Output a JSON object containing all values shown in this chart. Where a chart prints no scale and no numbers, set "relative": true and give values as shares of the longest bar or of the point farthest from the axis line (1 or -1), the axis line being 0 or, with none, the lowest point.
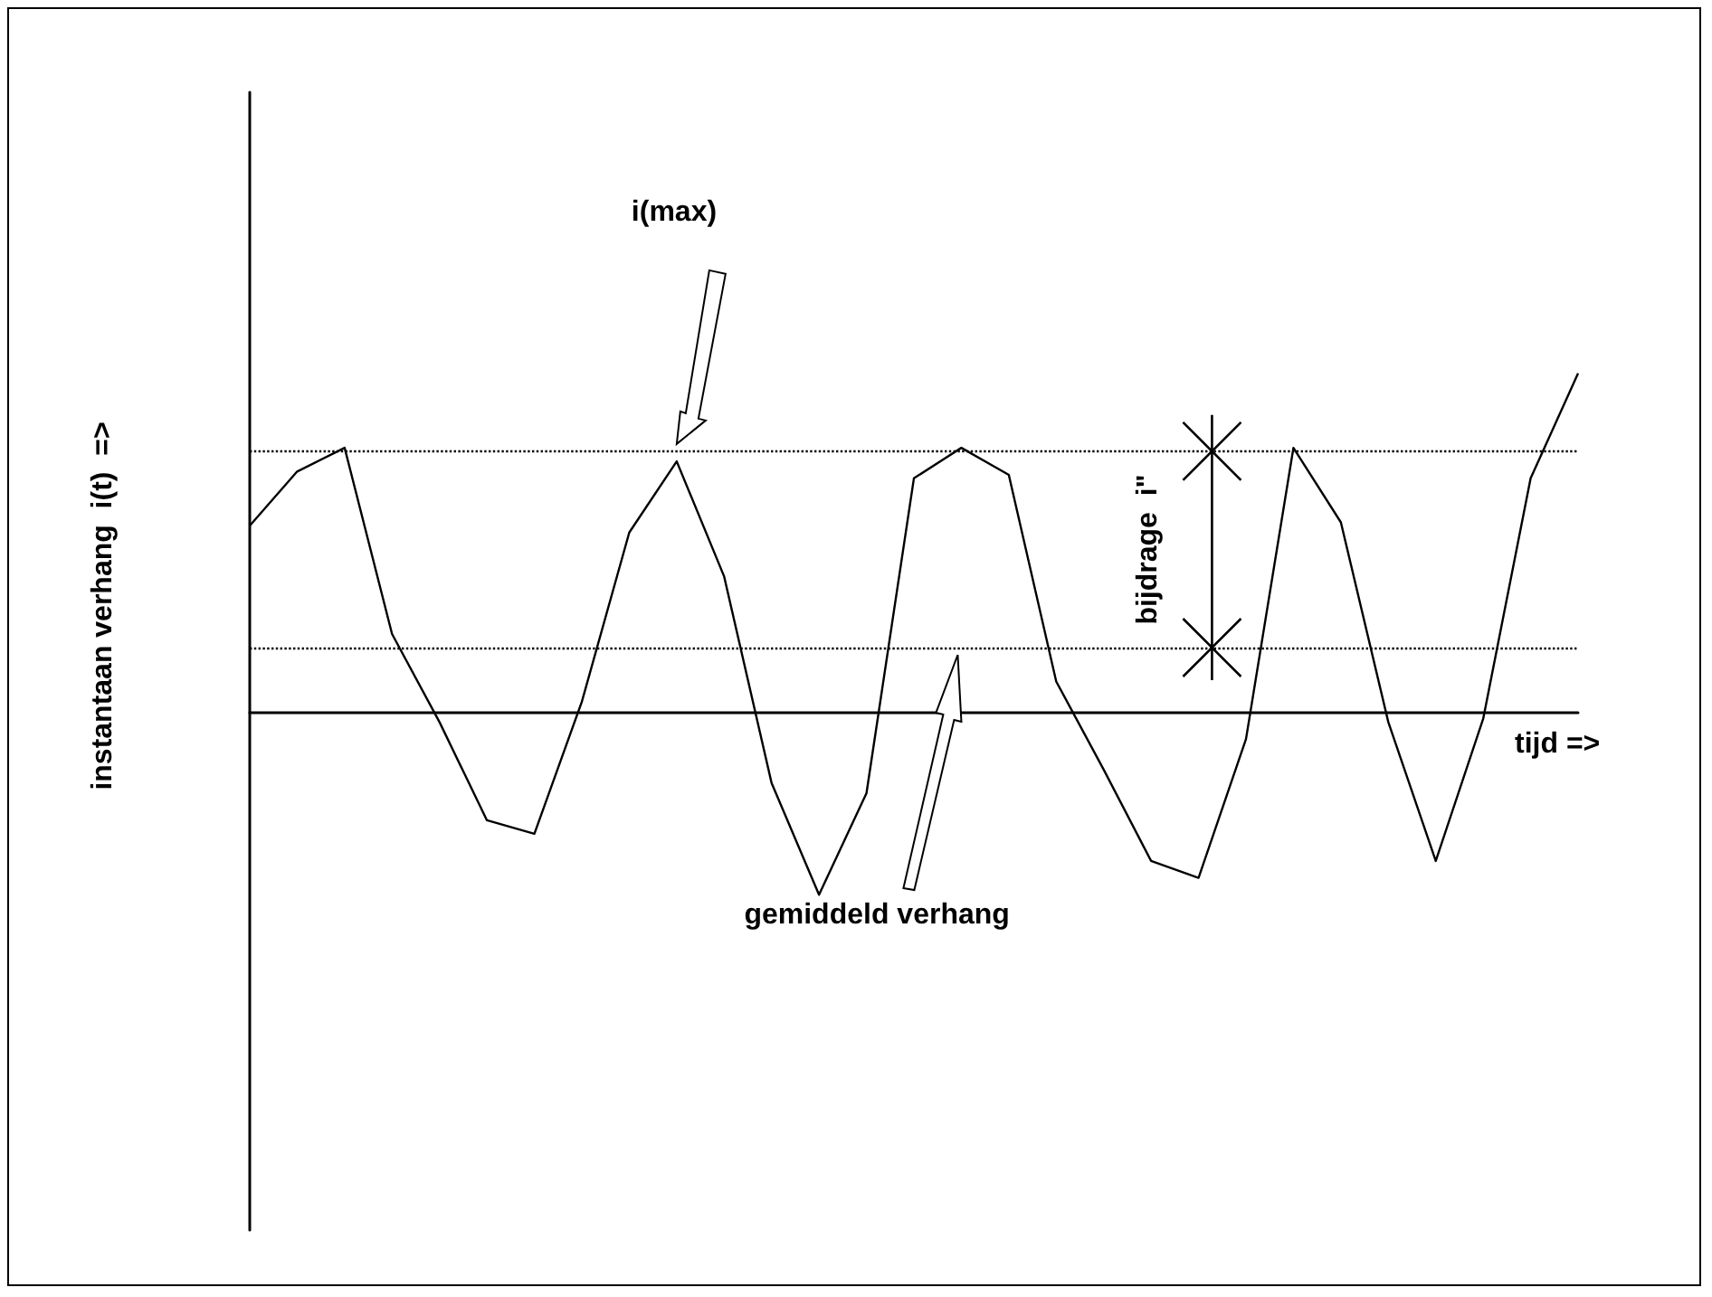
{
  "chart_data": {
    "type": "line",
    "relative": true,
    "xlabel": "tijd =>",
    "ylabel": "instantaan verhang  i(t)  =>",
    "categories": [
      null,
      null,
      null,
      null,
      null,
      null,
      null,
      null,
      null,
      null,
      null,
      null,
      null,
      null,
      null,
      null,
      null,
      null,
      null,
      null,
      null,
      null,
      null,
      null,
      null,
      null,
      null,
      null,
      null
    ],
    "values": [
      0.55,
      0.71,
      0.78,
      0.23,
      -0.03,
      -0.32,
      -0.36,
      0.03,
      0.53,
      0.74,
      0.4,
      -0.21,
      -0.54,
      -0.24,
      0.69,
      0.78,
      0.7,
      0.09,
      -0.17,
      -0.44,
      -0.49,
      -0.08,
      0.78,
      0.56,
      -0.03,
      -0.44,
      -0.02,
      0.69,
      1
    ],
    "color": "#000000",
    "marker": "none",
    "line_style": "solid",
    "grid": false,
    "ref_lines": [
      {
        "axis": "y",
        "value": 0.77,
        "color": "#000000",
        "line_style": "dotted"
      },
      {
        "axis": "y",
        "value": 0.19,
        "color": "#000000",
        "line_style": "dotted"
      }
    ],
    "annotations": [
      "i(max)",
      "gemiddeld verhang",
      "bijdrage  i\""
    ]
  }
}
